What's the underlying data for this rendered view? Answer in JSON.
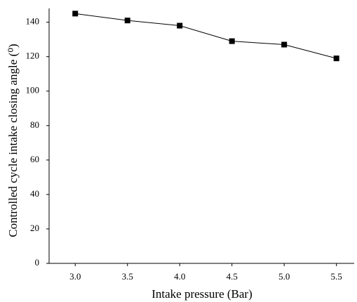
{
  "chart_data": {
    "type": "line",
    "x_label": "Intake pressure (Bar)",
    "y_label": "Controlled cycle intake closing angle (⁰)",
    "x": [
      3.0,
      3.5,
      4.0,
      4.5,
      5.0,
      5.5
    ],
    "series": [
      {
        "color": "#000000",
        "values": [
          145,
          141,
          138,
          129,
          127,
          119
        ]
      }
    ],
    "xlim": [
      2.75,
      5.67
    ],
    "ylim": [
      0,
      148
    ],
    "xticks": [
      {
        "value": 3.0,
        "label": "3.0"
      },
      {
        "value": 3.5,
        "label": "3.5"
      },
      {
        "value": 4.0,
        "label": "4.0"
      },
      {
        "value": 4.5,
        "label": "4.5"
      },
      {
        "value": 5.0,
        "label": "5.0"
      },
      {
        "value": 5.5,
        "label": "5.5"
      }
    ],
    "yticks": [
      0,
      20,
      40,
      60,
      80,
      100,
      120,
      140
    ]
  }
}
